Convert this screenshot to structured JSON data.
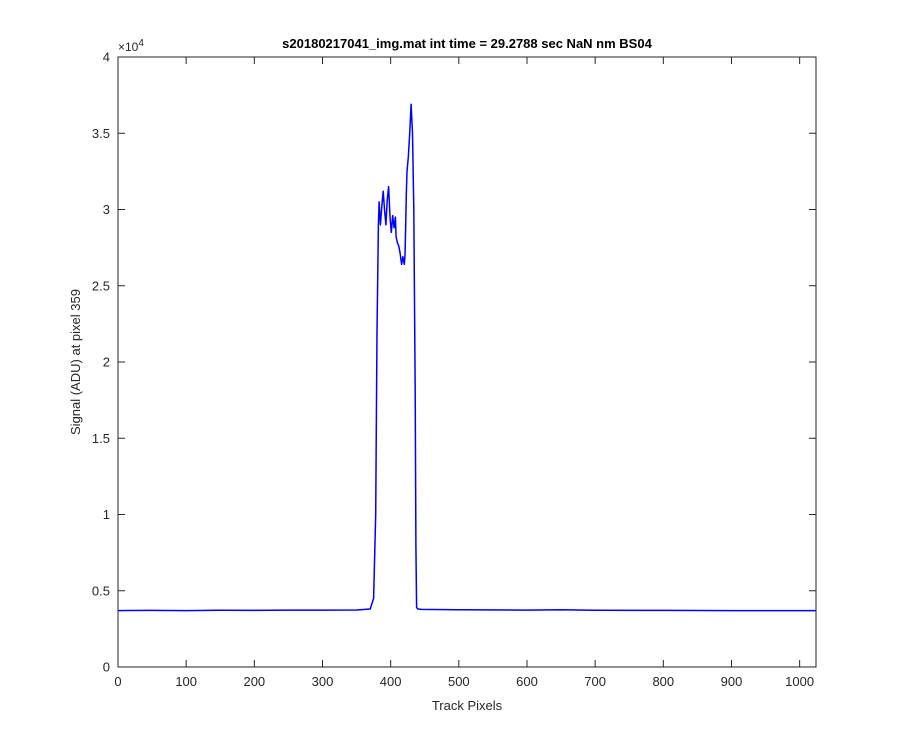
{
  "chart_data": {
    "type": "line",
    "title": "s20180217041_img.mat int time = 29.2788 sec  NaN nm BS04",
    "xlabel": "Track Pixels",
    "ylabel": "Signal (ADU) at pixel 359",
    "xlim": [
      0,
      1024
    ],
    "ylim": [
      0,
      40000
    ],
    "y_exponent_label": "×10",
    "y_exponent_power": "4",
    "x_ticks": [
      0,
      100,
      200,
      300,
      400,
      500,
      600,
      700,
      800,
      900,
      1000
    ],
    "x_tick_labels": [
      "0",
      "100",
      "200",
      "300",
      "400",
      "500",
      "600",
      "700",
      "800",
      "900",
      "1000"
    ],
    "y_ticks": [
      0,
      5000,
      10000,
      15000,
      20000,
      25000,
      30000,
      35000,
      40000
    ],
    "y_tick_labels": [
      "0",
      "0.5",
      "1",
      "1.5",
      "2",
      "2.5",
      "3",
      "3.5",
      "4"
    ],
    "grid": false,
    "series_color": "#0000ff",
    "series": [
      {
        "name": "",
        "x": [
          0,
          50,
          100,
          150,
          200,
          250,
          300,
          350,
          370,
          375,
          378,
          380,
          382,
          383,
          385,
          387,
          389,
          391,
          393,
          395,
          397,
          399,
          401,
          403,
          405,
          407,
          408,
          410,
          412,
          414,
          416,
          418,
          420,
          421,
          422,
          423,
          424,
          426,
          428,
          430,
          432,
          434,
          436,
          437,
          438,
          440,
          445,
          500,
          600,
          650,
          700,
          800,
          900,
          1024
        ],
        "y": [
          3700,
          3710,
          3700,
          3720,
          3710,
          3730,
          3730,
          3740,
          3800,
          4500,
          10000,
          22000,
          29000,
          30500,
          29000,
          30200,
          31200,
          30000,
          29000,
          30600,
          31500,
          29500,
          28500,
          29600,
          28800,
          29500,
          28200,
          27800,
          27600,
          27100,
          26400,
          26900,
          26400,
          27000,
          29000,
          31000,
          32500,
          33500,
          35000,
          36900,
          35000,
          30000,
          18000,
          8000,
          3900,
          3800,
          3780,
          3750,
          3730,
          3750,
          3720,
          3710,
          3700,
          3700
        ]
      }
    ]
  }
}
